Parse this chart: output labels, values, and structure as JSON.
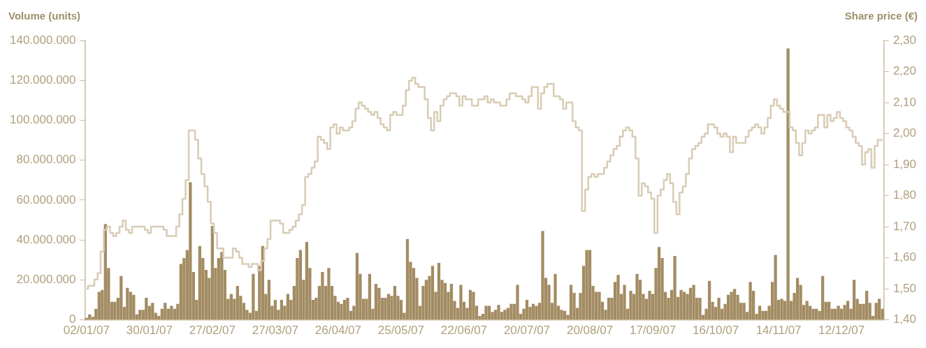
{
  "chart_data": {
    "type": "bar",
    "ylabel": "Volume (units)",
    "y2label": "Share price (€)",
    "categories": [
      "02/01/07",
      null,
      null,
      null,
      null,
      null,
      null,
      null,
      null,
      null,
      null,
      null,
      null,
      null,
      null,
      null,
      null,
      null,
      null,
      null,
      "30/01/07",
      null,
      null,
      null,
      null,
      null,
      null,
      null,
      null,
      null,
      null,
      null,
      null,
      null,
      null,
      null,
      null,
      null,
      null,
      null,
      "27/02/07",
      null,
      null,
      null,
      null,
      null,
      null,
      null,
      null,
      null,
      null,
      null,
      null,
      null,
      null,
      null,
      null,
      null,
      null,
      null,
      "27/03/07",
      null,
      null,
      null,
      null,
      null,
      null,
      null,
      null,
      null,
      null,
      null,
      null,
      null,
      null,
      null,
      null,
      null,
      null,
      null,
      "26/04/07",
      null,
      null,
      null,
      null,
      null,
      null,
      null,
      null,
      null,
      null,
      null,
      null,
      null,
      null,
      null,
      null,
      null,
      null,
      null,
      "25/05/07",
      null,
      null,
      null,
      null,
      null,
      null,
      null,
      null,
      null,
      null,
      null,
      null,
      null,
      null,
      null,
      null,
      null,
      null,
      null,
      "22/06/07",
      null,
      null,
      null,
      null,
      null,
      null,
      null,
      null,
      null,
      null,
      null,
      null,
      null,
      null,
      null,
      null,
      null,
      null,
      null,
      "20/07/07",
      null,
      null,
      null,
      null,
      null,
      null,
      null,
      null,
      null,
      null,
      null,
      null,
      null,
      null,
      null,
      null,
      null,
      null,
      null,
      "20/08/07",
      null,
      null,
      null,
      null,
      null,
      null,
      null,
      null,
      null,
      null,
      null,
      null,
      null,
      null,
      null,
      null,
      null,
      null,
      null,
      "17/09/07",
      null,
      null,
      null,
      null,
      null,
      null,
      null,
      null,
      null,
      null,
      null,
      null,
      null,
      null,
      null,
      null,
      null,
      null,
      null,
      "16/10/07",
      null,
      null,
      null,
      null,
      null,
      null,
      null,
      null,
      null,
      null,
      null,
      null,
      null,
      null,
      null,
      null,
      null,
      null,
      null,
      "14/11/07",
      null,
      null,
      null,
      null,
      null,
      null,
      null,
      null,
      null,
      null,
      null,
      null,
      null,
      null,
      null,
      null,
      null,
      null,
      null,
      "12/12/07",
      null,
      null,
      null,
      null,
      null,
      null,
      null,
      null,
      null,
      null,
      null,
      null,
      null
    ],
    "series": [
      {
        "color": "#a38c63",
        "values": [
          1000000,
          2700000,
          1500000,
          5500000,
          14000000,
          15000000,
          48000000,
          26000000,
          9000000,
          9000000,
          11000000,
          22000000,
          6500000,
          16000000,
          14000000,
          12500000,
          2700000,
          5000000,
          5000000,
          11000000,
          7000000,
          8500000,
          3500000,
          2000000,
          5500000,
          8500000,
          5500000,
          7000000,
          5500000,
          8000000,
          28000000,
          31000000,
          35000000,
          69000000,
          24000000,
          10000000,
          37000000,
          31000000,
          25000000,
          21000000,
          47000000,
          26000000,
          31000000,
          34000000,
          25000000,
          10500000,
          13000000,
          10500000,
          17000000,
          12000000,
          8500000,
          5000000,
          3500000,
          23000000,
          4500000,
          27000000,
          37000000,
          13000000,
          20000000,
          7000000,
          10000000,
          5000000,
          10000000,
          7000000,
          13000000,
          10000000,
          17000000,
          31000000,
          35000000,
          20000000,
          39000000,
          26000000,
          10000000,
          11000000,
          17000000,
          24000000,
          17000000,
          26000000,
          17000000,
          12000000,
          9000000,
          8000000,
          10000000,
          11000000,
          4500000,
          7000000,
          33500000,
          23000000,
          10500000,
          10500000,
          23000000,
          5500000,
          18000000,
          16000000,
          11000000,
          11000000,
          13000000,
          12000000,
          17000000,
          12000000,
          10000000,
          3500000,
          40500000,
          29000000,
          26000000,
          21000000,
          7000000,
          17000000,
          20000000,
          22000000,
          27000000,
          14000000,
          28500000,
          20000000,
          18500000,
          14000000,
          18000000,
          9500000,
          6000000,
          17500000,
          9000000,
          6000000,
          15000000,
          14000000,
          7000000,
          2000000,
          3000000,
          7000000,
          7000000,
          4000000,
          5000000,
          7500000,
          4000000,
          5000000,
          6000000,
          8000000,
          8000000,
          17500000,
          3000000,
          5500000,
          10000000,
          6500000,
          8000000,
          7000000,
          8500000,
          44500000,
          21000000,
          17500000,
          8500000,
          23000000,
          7000000,
          5000000,
          4500000,
          2500000,
          17500000,
          13500000,
          6000000,
          13500000,
          27000000,
          35000000,
          35000000,
          17000000,
          14000000,
          14000000,
          9000000,
          5000000,
          11000000,
          11000000,
          19000000,
          22500000,
          13000000,
          17500000,
          5500000,
          14500000,
          13000000,
          23000000,
          20000000,
          13000000,
          10500000,
          14500000,
          13000000,
          26000000,
          36500000,
          31000000,
          14000000,
          11000000,
          15000000,
          32000000,
          11500000,
          15000000,
          14000000,
          13000000,
          16000000,
          17500000,
          11000000,
          11000000,
          2500000,
          5500000,
          19500000,
          9000000,
          6500000,
          11000000,
          5500000,
          8000000,
          12500000,
          14000000,
          15500000,
          12500000,
          8500000,
          8500000,
          4000000,
          19000000,
          14500000,
          3000000,
          7000000,
          4500000,
          4500000,
          7000000,
          19000000,
          32500000,
          10000000,
          10500000,
          9500000,
          136000000,
          9500000,
          13500000,
          21000000,
          17500000,
          7500000,
          9500000,
          7000000,
          5500000,
          5500000,
          4500000,
          22000000,
          9000000,
          9000000,
          5500000,
          5500000,
          7000000,
          5500000,
          7500000,
          9500000,
          5500000,
          20000000,
          10500000,
          8000000,
          8000000,
          14500000,
          8500000,
          2000000,
          8500000,
          10500000,
          5500000
        ]
      },
      {
        "type": "step",
        "axis": "y2",
        "color": "#d8ccb4",
        "values": [
          1.5,
          1.51,
          1.51,
          1.53,
          1.55,
          1.62,
          1.69,
          1.7,
          1.68,
          1.67,
          1.68,
          1.7,
          1.72,
          1.69,
          1.68,
          1.7,
          1.7,
          1.7,
          1.7,
          1.69,
          1.68,
          1.7,
          1.7,
          1.7,
          1.7,
          1.69,
          1.67,
          1.67,
          1.67,
          1.7,
          1.74,
          1.79,
          1.85,
          2.01,
          2.01,
          1.98,
          1.92,
          1.87,
          1.83,
          1.78,
          1.71,
          1.68,
          1.63,
          1.63,
          1.6,
          1.6,
          1.6,
          1.63,
          1.62,
          1.6,
          1.58,
          1.58,
          1.57,
          1.58,
          1.58,
          1.56,
          1.59,
          1.63,
          1.66,
          1.72,
          1.72,
          1.72,
          1.71,
          1.68,
          1.68,
          1.69,
          1.7,
          1.72,
          1.74,
          1.77,
          1.86,
          1.87,
          1.89,
          1.91,
          1.99,
          1.98,
          1.97,
          1.95,
          2.02,
          2.03,
          2.0,
          2.02,
          2.01,
          2.01,
          2.02,
          2.04,
          2.08,
          2.1,
          2.09,
          2.08,
          2.07,
          2.06,
          2.07,
          2.05,
          2.03,
          2.02,
          2.01,
          2.06,
          2.07,
          2.06,
          2.06,
          2.09,
          2.14,
          2.17,
          2.18,
          2.16,
          2.15,
          2.15,
          2.11,
          2.05,
          2.01,
          2.07,
          2.04,
          2.09,
          2.11,
          2.12,
          2.13,
          2.13,
          2.12,
          2.09,
          2.12,
          2.11,
          2.11,
          2.09,
          2.09,
          2.11,
          2.11,
          2.12,
          2.1,
          2.11,
          2.1,
          2.1,
          2.09,
          2.09,
          2.11,
          2.13,
          2.13,
          2.12,
          2.12,
          2.11,
          2.1,
          2.12,
          2.15,
          2.15,
          2.08,
          2.13,
          2.15,
          2.16,
          2.16,
          2.12,
          2.12,
          2.11,
          2.08,
          2.1,
          2.1,
          2.04,
          2.02,
          2.01,
          1.75,
          1.82,
          1.86,
          1.87,
          1.86,
          1.87,
          1.87,
          1.89,
          1.91,
          1.93,
          1.95,
          1.96,
          1.99,
          2.01,
          2.02,
          2.01,
          1.99,
          1.92,
          1.8,
          1.84,
          1.83,
          1.81,
          1.79,
          1.68,
          1.8,
          1.82,
          1.85,
          1.87,
          1.84,
          1.78,
          1.74,
          1.81,
          1.83,
          1.87,
          1.92,
          1.95,
          1.96,
          1.97,
          1.99,
          2.0,
          2.03,
          2.03,
          2.02,
          2.0,
          1.99,
          2.0,
          1.99,
          1.94,
          1.99,
          1.97,
          1.97,
          1.97,
          1.99,
          2.01,
          2.02,
          2.03,
          2.02,
          2.0,
          2.02,
          2.05,
          2.09,
          2.11,
          2.09,
          2.08,
          2.07,
          2.07,
          2.02,
          2.01,
          1.97,
          1.93,
          1.97,
          2.01,
          2.0,
          2.01,
          2.02,
          2.06,
          2.06,
          2.02,
          2.06,
          2.04,
          2.05,
          2.07,
          2.05,
          2.04,
          2.02,
          2.01,
          1.99,
          1.97,
          1.96,
          1.9,
          1.94,
          1.95,
          1.89,
          1.96,
          1.98,
          1.98
        ]
      }
    ],
    "ylim": [
      0,
      140000000
    ],
    "yticks": [
      {
        "value": 0,
        "label": "0"
      },
      {
        "value": 20000000,
        "label": "20.000.000"
      },
      {
        "value": 40000000,
        "label": "40.000.000"
      },
      {
        "value": 60000000,
        "label": "60.000.000"
      },
      {
        "value": 80000000,
        "label": "80.000.000"
      },
      {
        "value": 100000000,
        "label": "100.000.000"
      },
      {
        "value": 120000000,
        "label": "120.000.000"
      },
      {
        "value": 140000000,
        "label": "140.000.000"
      }
    ],
    "y2lim": [
      1.4,
      2.3
    ],
    "y2ticks": [
      {
        "value": 1.4,
        "label": "1,40"
      },
      {
        "value": 1.5,
        "label": "1,50"
      },
      {
        "value": 1.6,
        "label": "1,60"
      },
      {
        "value": 1.7,
        "label": "1,70"
      },
      {
        "value": 1.8,
        "label": "1,80"
      },
      {
        "value": 1.9,
        "label": "1,90"
      },
      {
        "value": 2.0,
        "label": "2,00"
      },
      {
        "value": 2.1,
        "label": "2,10"
      },
      {
        "value": 2.2,
        "label": "2,20"
      },
      {
        "value": 2.3,
        "label": "2,30"
      }
    ]
  }
}
